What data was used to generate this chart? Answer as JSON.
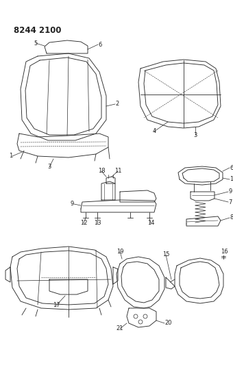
{
  "title": "8244 2100",
  "background_color": "#ffffff",
  "line_color": "#2a2a2a",
  "label_color": "#222222",
  "label_fontsize": 6.0,
  "fig_width": 3.4,
  "fig_height": 5.33,
  "dpi": 100
}
